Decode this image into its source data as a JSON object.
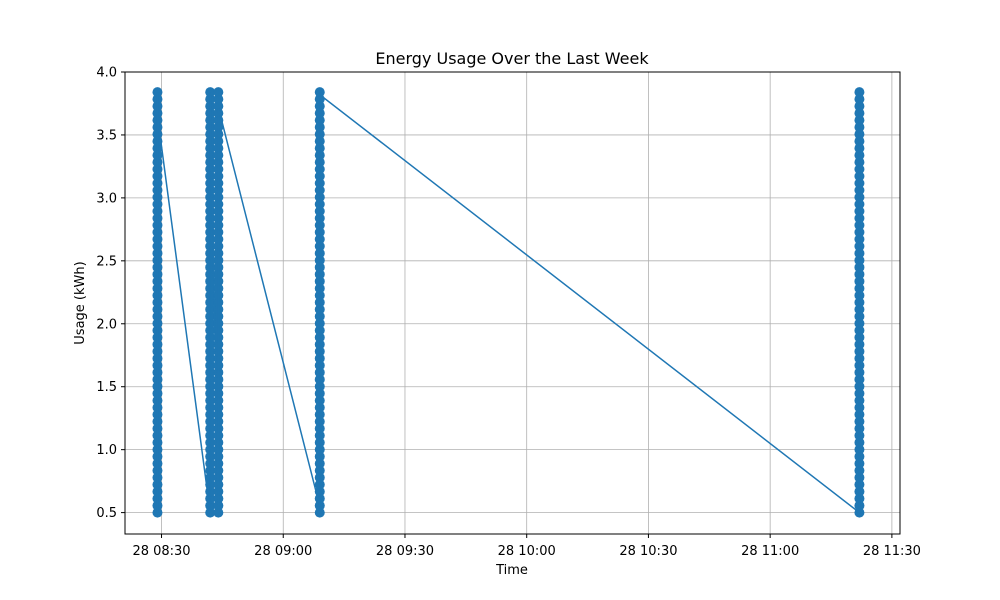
{
  "chart_data": {
    "type": "line",
    "title": "Energy Usage Over the Last Week",
    "xlabel": "Time",
    "ylabel": "Usage (kWh)",
    "x_axis_type": "time",
    "x_ticks": [
      "08:30",
      "09:00",
      "09:30",
      "10:00",
      "10:30",
      "11:00",
      "11:30"
    ],
    "x_tick_labels": [
      "28 08:30",
      "28 09:00",
      "28 09:30",
      "28 10:00",
      "28 10:30",
      "28 11:00",
      "28 11:30"
    ],
    "xlim": [
      "08:21",
      "11:32"
    ],
    "y_ticks": [
      0.5,
      1.0,
      1.5,
      2.0,
      2.5,
      3.0,
      3.5,
      4.0
    ],
    "y_tick_labels": [
      "0.5",
      "1.0",
      "1.5",
      "2.0",
      "2.5",
      "3.0",
      "3.5",
      "4.0"
    ],
    "ylim": [
      0.33,
      4.0
    ],
    "grid": true,
    "marker": "circle",
    "color": "#1f77b4",
    "series": [
      {
        "clusters": [
          {
            "time": "08:29",
            "y_min": 0.5,
            "y_max": 3.84,
            "trend": "down"
          },
          {
            "time": "08:42",
            "y_min": 0.5,
            "y_max": 3.84,
            "trend": "up"
          },
          {
            "time": "08:44",
            "y_min": 0.5,
            "y_max": 3.84,
            "trend": "down"
          },
          {
            "time": "09:09",
            "y_min": 0.5,
            "y_max": 3.84,
            "trend": "up"
          },
          {
            "time": "11:22",
            "y_min": 0.5,
            "y_max": 3.84,
            "trend": "flat"
          }
        ],
        "points": [
          {
            "x": "08:29",
            "y": 3.84
          },
          {
            "x": "08:29",
            "y": 0.5
          },
          {
            "x": "08:29",
            "y": 3.65
          },
          {
            "x": "08:42",
            "y": 0.5
          },
          {
            "x": "08:42",
            "y": 3.84
          },
          {
            "x": "08:44",
            "y": 0.5
          },
          {
            "x": "08:44",
            "y": 3.72
          },
          {
            "x": "09:09",
            "y": 0.55
          },
          {
            "x": "09:09",
            "y": 3.84
          },
          {
            "x": "09:09",
            "y": 3.82
          },
          {
            "x": "11:22",
            "y": 0.5
          },
          {
            "x": "11:22",
            "y": 3.84
          }
        ]
      }
    ]
  }
}
